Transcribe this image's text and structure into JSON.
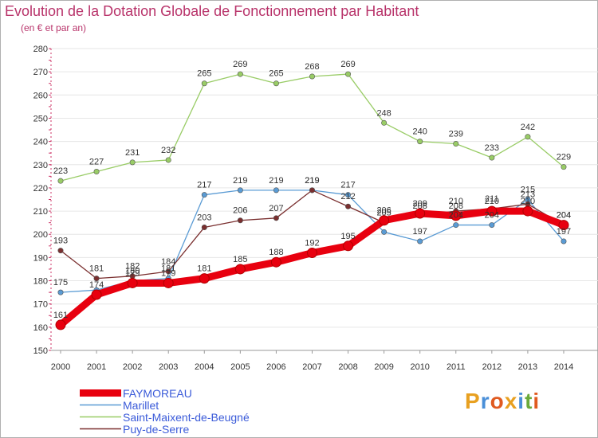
{
  "header": {
    "title": "Evolution de la Dotation Globale de Fonctionnement par Habitant",
    "subtitle": "(en € et par an)"
  },
  "logo": {
    "text": "Proxiti",
    "colors": [
      "#e8a020",
      "#4a8fd8",
      "#e05a20",
      "#e8a020",
      "#4a8fd8",
      "#6aaa3a",
      "#e05a20"
    ]
  },
  "chart_data": {
    "type": "line",
    "title": "Evolution de la Dotation Globale de Fonctionnement par Habitant",
    "subtitle": "(en € et par an)",
    "xlabel": "",
    "ylabel": "",
    "ylim": [
      150,
      280
    ],
    "yticks": [
      150,
      160,
      170,
      180,
      190,
      200,
      210,
      220,
      230,
      240,
      250,
      260,
      270,
      280
    ],
    "grid": "horizontal",
    "legend_position": "bottom-left",
    "x": [
      "2000",
      "2001",
      "2002",
      "2003",
      "2004",
      "2005",
      "2006",
      "2007",
      "2008",
      "2009",
      "2010",
      "2011",
      "2012",
      "2013",
      "2014"
    ],
    "series": [
      {
        "name": "FAYMOREAU",
        "color": "#e8000f",
        "values": [
          161,
          174,
          179,
          179,
          181,
          185,
          188,
          192,
          195,
          206,
          209,
          208,
          210,
          210,
          204
        ],
        "labels": [
          "161",
          "174",
          "179",
          "179",
          "181",
          "185",
          "188",
          "192",
          "195",
          "206",
          "209",
          "208",
          "210",
          "210",
          "204"
        ]
      },
      {
        "name": "Marillet",
        "color": "#5a9bd4",
        "values": [
          175,
          176,
          180,
          181,
          217,
          219,
          219,
          219,
          217,
          201,
          197,
          204,
          204,
          215,
          197
        ],
        "labels": [
          "175",
          "",
          "180",
          "181",
          "217",
          "219",
          "219",
          "219",
          "217",
          "",
          "197",
          "204",
          "204",
          "215",
          "197"
        ]
      },
      {
        "name": "Saint-Maixent-de-Beugné",
        "color": "#99cc66",
        "values": [
          223,
          227,
          231,
          232,
          265,
          269,
          265,
          268,
          269,
          248,
          240,
          239,
          233,
          242,
          229
        ],
        "labels": [
          "223",
          "227",
          "231",
          "232",
          "265",
          "269",
          "265",
          "268",
          "269",
          "248",
          "240",
          "239",
          "233",
          "242",
          "229"
        ]
      },
      {
        "name": "Puy-de-Serre",
        "color": "#7a2f2f",
        "values": [
          193,
          181,
          182,
          184,
          203,
          206,
          207,
          219,
          212,
          205,
          208,
          210,
          211,
          213,
          204
        ],
        "labels": [
          "193",
          "181",
          "182",
          "184",
          "203",
          "206",
          "207",
          "219",
          "212",
          "205",
          "208",
          "210",
          "211",
          "213",
          "204"
        ]
      }
    ]
  }
}
